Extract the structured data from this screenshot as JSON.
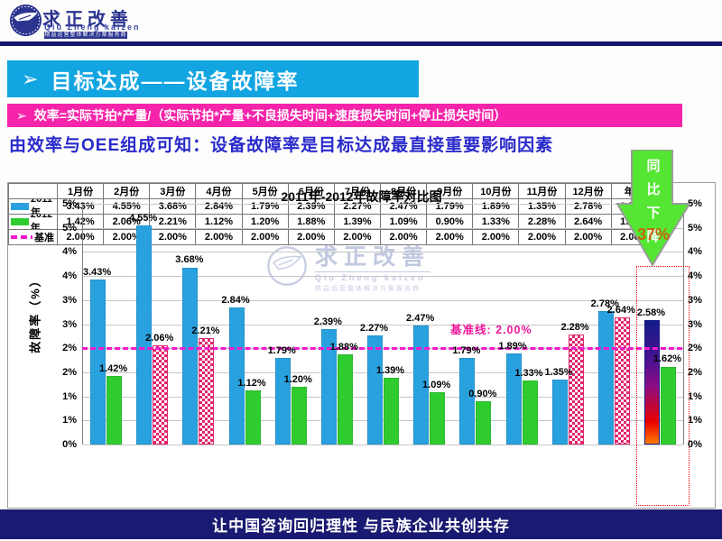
{
  "header": {
    "logo": {
      "cn": "求正改善",
      "pinyin": "Qiu Zheng kaizen",
      "tagline": "精益运营整体解决方案服务商"
    }
  },
  "title_bar": {
    "bullet": "➢",
    "text": "目标达成——设备故障率"
  },
  "formula_bar": {
    "bullet": "➢",
    "text": "效率=实际节拍*产量/（实际节拍*产量+不良损失时间+速度损失时间+停止损失时间）"
  },
  "statement": "由效率与OEE组成可知：设备故障率是目标达成最直接重要影响因素",
  "callout": {
    "vertical_text": "同比下降",
    "value": "37%"
  },
  "watermark": {
    "cn": "求正改善",
    "pinyin": "Qiu Zheng kaizen",
    "tagline": "精益运营整体解决方案服务商"
  },
  "footer": "让中国咨询回归理性  与民族企业共创共存",
  "chart_data": {
    "type": "bar",
    "title": "2011年-2012年故障率对比图",
    "ylabel": "故障率（%）",
    "categories": [
      "1月份",
      "2月份",
      "3月份",
      "4月份",
      "5月份",
      "6月份",
      "7月份",
      "8月份",
      "9月份",
      "10月份",
      "11月份",
      "12月份",
      "年度"
    ],
    "series": [
      {
        "name": "2011年",
        "values": [
          3.43,
          4.55,
          3.68,
          2.84,
          1.79,
          2.39,
          2.27,
          2.47,
          1.79,
          1.89,
          1.35,
          2.78,
          2.58
        ]
      },
      {
        "name": "2012年",
        "values": [
          1.42,
          2.06,
          2.21,
          1.12,
          1.2,
          1.88,
          1.39,
          1.09,
          0.9,
          1.33,
          2.28,
          2.64,
          1.62
        ]
      },
      {
        "name": "基准",
        "values": [
          2.0,
          2.0,
          2.0,
          2.0,
          2.0,
          2.0,
          2.0,
          2.0,
          2.0,
          2.0,
          2.0,
          2.0,
          2.0
        ]
      }
    ],
    "baseline": {
      "value": 2.0,
      "label": "基准线: 2.00%"
    },
    "ylim": [
      0,
      5
    ],
    "ytick_step": 0.5,
    "ytick_labels_bottom_to_top": [
      "0%",
      "1%",
      "1%",
      "2%",
      "2%",
      "3%",
      "3%",
      "4%",
      "4%",
      "5%",
      "5%"
    ],
    "grid": true,
    "legend_position": "table-left",
    "over_baseline_style": "red-white-checkered",
    "annual_column": "年度",
    "colors": {
      "series_2011": "#2aa1df",
      "series_2012": "#2fcc30",
      "over_baseline_checker": "#e2256b",
      "baseline_line": "#f319ce",
      "annual_gradient": [
        "#141c8a",
        "#8a0d86",
        "#e90000",
        "#ff7a00"
      ],
      "accent_cyan": "#12a5e2",
      "accent_pink": "#f524aa",
      "accent_navy": "#1a1a72",
      "callout_green": "#54e632"
    }
  }
}
